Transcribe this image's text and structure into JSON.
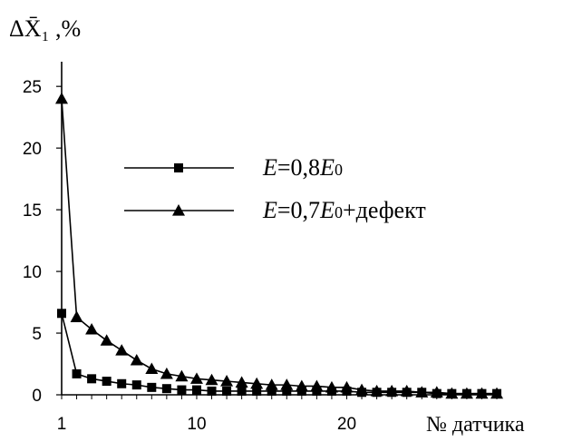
{
  "chart_data": {
    "type": "line",
    "ylabel": "ΔX̄₁ ,%",
    "xlabel": "№ датчика",
    "x_ticks": [
      1,
      10,
      20
    ],
    "y_ticks": [
      0,
      5,
      10,
      15,
      20,
      25
    ],
    "xlim": [
      1,
      30
    ],
    "ylim": [
      0,
      27
    ],
    "grid": false,
    "legend_position": "center-right",
    "series": [
      {
        "name": "E=0,8E0",
        "label_parts": [
          "E",
          "=0,8",
          "E",
          "0"
        ],
        "marker": "square",
        "color": "#000000",
        "x": [
          1,
          2,
          3,
          4,
          5,
          6,
          7,
          8,
          9,
          10,
          11,
          12,
          13,
          14,
          15,
          16,
          17,
          18,
          19,
          20,
          21,
          22,
          23,
          24,
          25,
          26,
          27,
          28,
          29,
          30
        ],
        "values": [
          6.6,
          1.7,
          1.3,
          1.1,
          0.9,
          0.8,
          0.6,
          0.5,
          0.4,
          0.4,
          0.3,
          0.3,
          0.3,
          0.3,
          0.3,
          0.3,
          0.3,
          0.3,
          0.3,
          0.3,
          0.2,
          0.2,
          0.2,
          0.2,
          0.2,
          0.1,
          0.1,
          0.1,
          0.1,
          0.1
        ]
      },
      {
        "name": "E=0,7E0+дефект",
        "label_parts": [
          "E",
          "=0,7",
          "E",
          "0",
          "+дефект"
        ],
        "marker": "triangle",
        "color": "#000000",
        "x": [
          1,
          2,
          3,
          4,
          5,
          6,
          7,
          8,
          9,
          10,
          11,
          12,
          13,
          14,
          15,
          16,
          17,
          18,
          19,
          20,
          21,
          22,
          23,
          24,
          25,
          26,
          27,
          28,
          29,
          30
        ],
        "values": [
          24.0,
          6.3,
          5.3,
          4.4,
          3.6,
          2.8,
          2.1,
          1.7,
          1.5,
          1.3,
          1.2,
          1.1,
          1.0,
          0.9,
          0.8,
          0.8,
          0.7,
          0.7,
          0.6,
          0.6,
          0.4,
          0.3,
          0.3,
          0.3,
          0.2,
          0.2,
          0.1,
          0.1,
          0.1,
          0.1
        ]
      }
    ]
  }
}
